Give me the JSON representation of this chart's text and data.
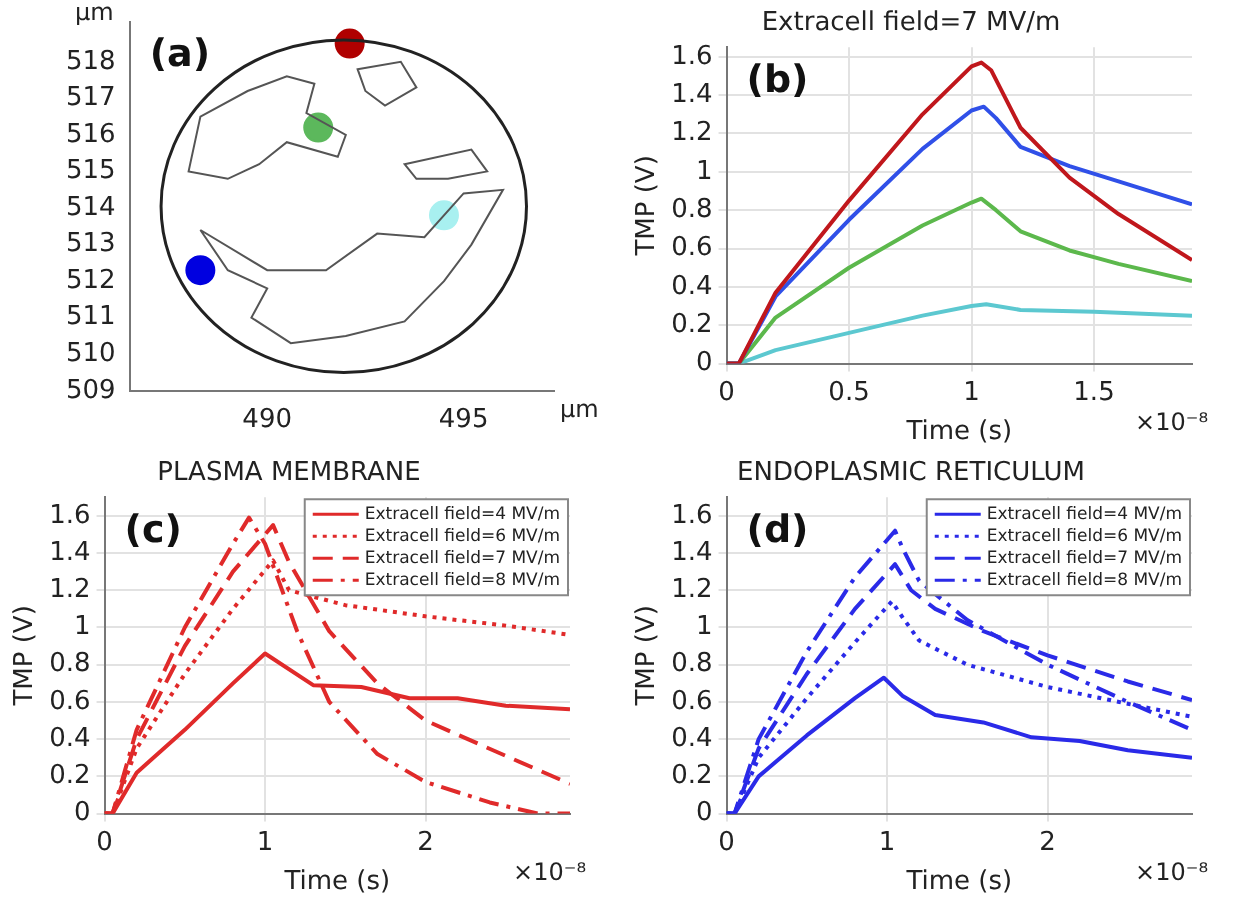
{
  "chart_data": [
    {
      "type": "scatter",
      "xlabel": "μm",
      "ylabel": "μm",
      "annotations": [
        "(a)"
      ],
      "marker": "circle",
      "grid": false,
      "x": [
        492.1,
        491.3,
        494.5,
        488.3
      ],
      "values": [
        518.5,
        516.2,
        513.8,
        512.3
      ],
      "colors": [
        "#b00000",
        "#5cb85c",
        "#a8f0f0",
        "#0000e0"
      ],
      "xlim": [
        486.5,
        497.3
      ],
      "ylim": [
        509,
        519.1
      ],
      "xticks": [
        490,
        495
      ],
      "yticks": [
        509,
        510,
        511,
        512,
        513,
        514,
        515,
        516,
        517,
        518
      ]
    },
    {
      "type": "line",
      "title": "Extracell field=7 MV/m",
      "xlabel": "Time (s)",
      "ylabel": "TMP (V)",
      "annotations": [
        "(b)",
        "×10⁻⁸"
      ],
      "grid": true,
      "marker": "none",
      "xlim": [
        0,
        1.9
      ],
      "ylim": [
        0,
        1.65
      ],
      "xticks": [
        0,
        0.5,
        1,
        1.5
      ],
      "yticks": [
        0,
        0.2,
        0.4,
        0.6,
        0.8,
        1,
        1.2,
        1.4,
        1.6
      ],
      "series": [
        {
          "color": "#c0171c",
          "line_style": "solid",
          "x": [
            0,
            0.05,
            0.2,
            0.5,
            0.8,
            1.0,
            1.04,
            1.08,
            1.2,
            1.4,
            1.6,
            1.9
          ],
          "values": [
            0,
            0,
            0.37,
            0.85,
            1.3,
            1.55,
            1.57,
            1.53,
            1.23,
            0.97,
            0.78,
            0.54
          ]
        },
        {
          "color": "#3050e8",
          "line_style": "solid",
          "x": [
            0,
            0.05,
            0.2,
            0.5,
            0.8,
            1.0,
            1.05,
            1.1,
            1.2,
            1.4,
            1.6,
            1.9
          ],
          "values": [
            0,
            0,
            0.35,
            0.75,
            1.12,
            1.32,
            1.34,
            1.28,
            1.13,
            1.03,
            0.95,
            0.83
          ]
        },
        {
          "color": "#5cb84c",
          "line_style": "solid",
          "x": [
            0,
            0.05,
            0.2,
            0.5,
            0.8,
            1.0,
            1.04,
            1.1,
            1.2,
            1.4,
            1.6,
            1.9
          ],
          "values": [
            0,
            0,
            0.24,
            0.5,
            0.72,
            0.84,
            0.86,
            0.8,
            0.69,
            0.59,
            0.52,
            0.43
          ]
        },
        {
          "color": "#5cc8d0",
          "line_style": "solid",
          "x": [
            0,
            0.05,
            0.2,
            0.5,
            0.8,
            1.0,
            1.06,
            1.2,
            1.5,
            1.9
          ],
          "values": [
            0,
            0,
            0.07,
            0.16,
            0.25,
            0.3,
            0.31,
            0.28,
            0.27,
            0.25
          ]
        }
      ]
    },
    {
      "type": "line",
      "title": "PLASMA MEMBRANE",
      "xlabel": "Time (s)",
      "ylabel": "TMP (V)",
      "annotations": [
        "(c)",
        "×10⁻⁸"
      ],
      "grid": true,
      "marker": "none",
      "legend": "top right",
      "xlim": [
        0,
        2.9
      ],
      "ylim": [
        0,
        1.7
      ],
      "xticks": [
        0,
        1,
        2
      ],
      "yticks": [
        0,
        0.2,
        0.4,
        0.6,
        0.8,
        1,
        1.2,
        1.4,
        1.6
      ],
      "series": [
        {
          "name": "Extracell field=4 MV/m",
          "color": "#e02a2a",
          "line_style": "solid",
          "x": [
            0,
            0.05,
            0.2,
            0.5,
            0.8,
            1.0,
            1.3,
            1.6,
            1.9,
            2.2,
            2.5,
            2.9
          ],
          "values": [
            0,
            0,
            0.22,
            0.45,
            0.7,
            0.86,
            0.69,
            0.68,
            0.62,
            0.62,
            0.58,
            0.56
          ]
        },
        {
          "name": "Extracell field=6 MV/m",
          "color": "#e02a2a",
          "line_style": "dotted",
          "x": [
            0,
            0.05,
            0.2,
            0.5,
            0.8,
            1.05,
            1.15,
            1.5,
            2.0,
            2.5,
            2.9
          ],
          "values": [
            0,
            0,
            0.35,
            0.75,
            1.1,
            1.36,
            1.2,
            1.12,
            1.06,
            1.01,
            0.96
          ]
        },
        {
          "name": "Extracell field=7 MV/m",
          "color": "#e02a2a",
          "line_style": "dashed",
          "x": [
            0,
            0.05,
            0.2,
            0.5,
            0.8,
            1.05,
            1.15,
            1.4,
            1.7,
            2.0,
            2.5,
            2.9
          ],
          "values": [
            0,
            0,
            0.4,
            0.9,
            1.3,
            1.55,
            1.35,
            0.98,
            0.7,
            0.5,
            0.31,
            0.16
          ]
        },
        {
          "name": "Extracell field=8 MV/m",
          "color": "#e02a2a",
          "line_style": "dashdot",
          "x": [
            0,
            0.05,
            0.2,
            0.5,
            0.8,
            0.9,
            1.0,
            1.2,
            1.4,
            1.7,
            2.0,
            2.4,
            2.7,
            2.9
          ],
          "values": [
            0,
            0,
            0.45,
            1.0,
            1.45,
            1.59,
            1.45,
            0.98,
            0.6,
            0.32,
            0.17,
            0.06,
            0,
            0
          ]
        }
      ]
    },
    {
      "type": "line",
      "title": "ENDOPLASMIC RETICULUM",
      "xlabel": "Time (s)",
      "ylabel": "TMP (V)",
      "annotations": [
        "(d)",
        "×10⁻⁸"
      ],
      "grid": true,
      "marker": "none",
      "legend": "top right",
      "xlim": [
        0,
        2.9
      ],
      "ylim": [
        0,
        1.7
      ],
      "xticks": [
        0,
        1,
        2
      ],
      "yticks": [
        0,
        0.2,
        0.4,
        0.6,
        0.8,
        1,
        1.2,
        1.4,
        1.6
      ],
      "series": [
        {
          "name": "Extracell field=4 MV/m",
          "color": "#2a2ae8",
          "line_style": "solid",
          "x": [
            0,
            0.05,
            0.2,
            0.5,
            0.8,
            0.98,
            1.1,
            1.3,
            1.6,
            1.9,
            2.2,
            2.5,
            2.9
          ],
          "values": [
            0,
            0,
            0.2,
            0.42,
            0.62,
            0.73,
            0.63,
            0.53,
            0.49,
            0.41,
            0.39,
            0.34,
            0.3
          ]
        },
        {
          "name": "Extracell field=6 MV/m",
          "color": "#2a2ae8",
          "line_style": "dotted",
          "x": [
            0,
            0.05,
            0.2,
            0.5,
            0.8,
            1.03,
            1.1,
            1.2,
            1.5,
            2.0,
            2.5,
            2.9
          ],
          "values": [
            0,
            0,
            0.3,
            0.62,
            0.92,
            1.14,
            1.05,
            0.93,
            0.8,
            0.68,
            0.59,
            0.52
          ]
        },
        {
          "name": "Extracell field=7 MV/m",
          "color": "#2a2ae8",
          "line_style": "dashed",
          "x": [
            0,
            0.05,
            0.2,
            0.5,
            0.8,
            1.05,
            1.15,
            1.3,
            1.6,
            2.0,
            2.5,
            2.9
          ],
          "values": [
            0,
            0,
            0.35,
            0.75,
            1.1,
            1.34,
            1.2,
            1.1,
            0.98,
            0.85,
            0.71,
            0.61
          ]
        },
        {
          "name": "Extracell field=8 MV/m",
          "color": "#2a2ae8",
          "line_style": "dashdot",
          "x": [
            0,
            0.05,
            0.2,
            0.5,
            0.8,
            1.05,
            1.1,
            1.2,
            1.5,
            2.0,
            2.5,
            2.9
          ],
          "values": [
            0,
            0,
            0.4,
            0.87,
            1.27,
            1.52,
            1.42,
            1.25,
            1.04,
            0.8,
            0.6,
            0.45
          ]
        }
      ]
    }
  ]
}
